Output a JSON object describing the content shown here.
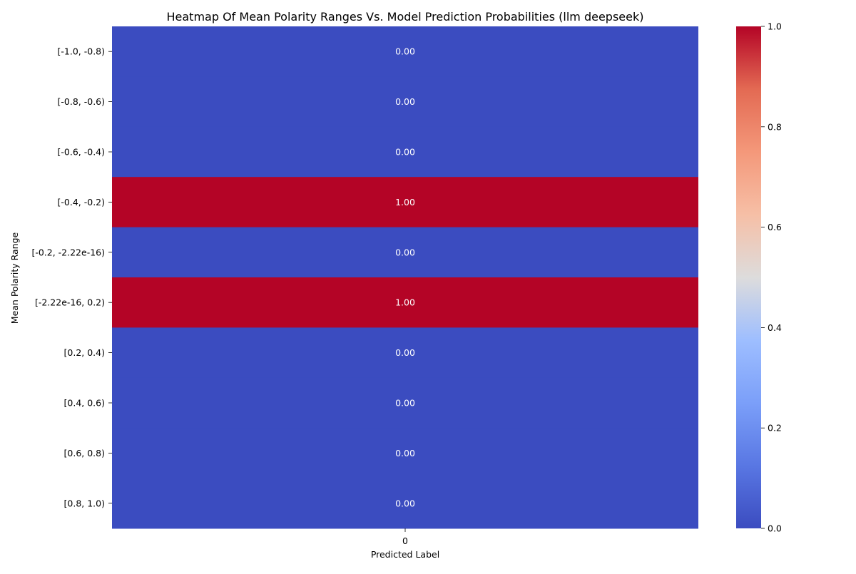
{
  "chart_data": {
    "type": "heatmap",
    "title": "Heatmap Of Mean Polarity Ranges Vs. Model Prediction Probabilities (llm deepseek)",
    "xlabel": "Predicted Label",
    "ylabel": "Mean Polarity Range",
    "columns": [
      "0"
    ],
    "rows": [
      "[-1.0, -0.8)",
      "[-0.8, -0.6)",
      "[-0.6, -0.4)",
      "[-0.4, -0.2)",
      "[-0.2, -2.22e-16)",
      "[-2.22e-16, 0.2)",
      "[0.2, 0.4)",
      "[0.4, 0.6)",
      "[0.6, 0.8)",
      "[0.8, 1.0)"
    ],
    "values": [
      [
        0.0
      ],
      [
        0.0
      ],
      [
        0.0
      ],
      [
        1.0
      ],
      [
        0.0
      ],
      [
        1.0
      ],
      [
        0.0
      ],
      [
        0.0
      ],
      [
        0.0
      ],
      [
        0.0
      ]
    ],
    "value_format": "0.00",
    "colormap": "coolwarm",
    "color_low": "#3b4cc0",
    "color_high": "#b40426",
    "colorbar": {
      "range": [
        0.0,
        1.0
      ],
      "ticks": [
        "0.0",
        "0.2",
        "0.4",
        "0.6",
        "0.8",
        "1.0"
      ]
    }
  }
}
